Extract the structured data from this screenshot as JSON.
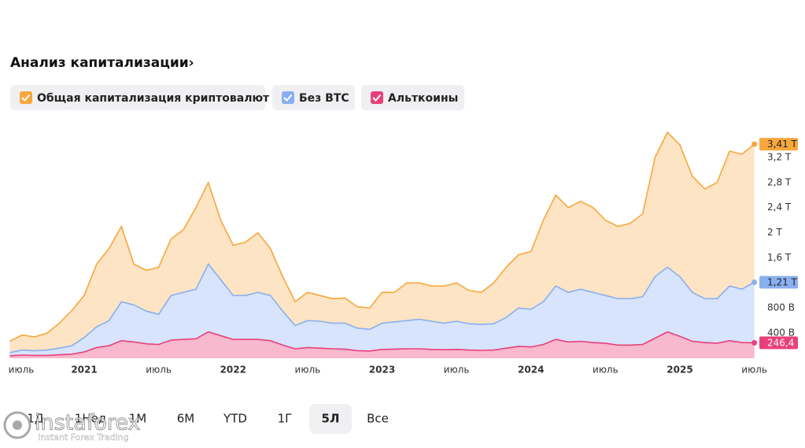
{
  "chart_data": {
    "type": "area",
    "title": "Анализ капитализации",
    "title_chevron": "›",
    "x": [
      "2020-07",
      "2020-08",
      "2020-09",
      "2020-10",
      "2020-11",
      "2020-12",
      "2021-01",
      "2021-02",
      "2021-03",
      "2021-04",
      "2021-05",
      "2021-06",
      "2021-07",
      "2021-08",
      "2021-09",
      "2021-10",
      "2021-11",
      "2021-12",
      "2022-01",
      "2022-02",
      "2022-03",
      "2022-04",
      "2022-05",
      "2022-06",
      "2022-07",
      "2022-08",
      "2022-09",
      "2022-10",
      "2022-11",
      "2022-12",
      "2023-01",
      "2023-02",
      "2023-03",
      "2023-04",
      "2023-05",
      "2023-06",
      "2023-07",
      "2023-08",
      "2023-09",
      "2023-10",
      "2023-11",
      "2023-12",
      "2024-01",
      "2024-02",
      "2024-03",
      "2024-04",
      "2024-05",
      "2024-06",
      "2024-07",
      "2024-08",
      "2024-09",
      "2024-10",
      "2024-11",
      "2024-12",
      "2025-01",
      "2025-02",
      "2025-03",
      "2025-04",
      "2025-05",
      "2025-06",
      "2025-07"
    ],
    "series": [
      {
        "name": "Общая капитализация криптовалют",
        "color": "#f7a73c",
        "fill": "#fde4c4",
        "last_label": "3,41 T",
        "values": [
          270,
          370,
          340,
          400,
          560,
          760,
          1000,
          1500,
          1750,
          2100,
          1500,
          1400,
          1450,
          1900,
          2050,
          2400,
          2800,
          2200,
          1800,
          1850,
          2000,
          1750,
          1300,
          900,
          1050,
          1000,
          950,
          960,
          820,
          800,
          1050,
          1050,
          1200,
          1200,
          1150,
          1150,
          1200,
          1080,
          1050,
          1200,
          1450,
          1650,
          1700,
          2200,
          2600,
          2400,
          2500,
          2400,
          2200,
          2100,
          2150,
          2300,
          3200,
          3600,
          3400,
          2900,
          2700,
          2800,
          3300,
          3250,
          3410
        ]
      },
      {
        "name": "Без BTC",
        "color": "#8aaff0",
        "fill": "#d7e4fb",
        "last_label": "1,21 T",
        "values": [
          90,
          130,
          120,
          130,
          160,
          200,
          330,
          500,
          600,
          900,
          850,
          750,
          700,
          1000,
          1050,
          1100,
          1500,
          1250,
          1000,
          1000,
          1050,
          1000,
          750,
          520,
          600,
          590,
          560,
          560,
          480,
          460,
          560,
          580,
          600,
          620,
          590,
          560,
          590,
          550,
          540,
          550,
          650,
          800,
          780,
          900,
          1150,
          1050,
          1100,
          1050,
          1000,
          950,
          950,
          980,
          1300,
          1450,
          1300,
          1050,
          950,
          950,
          1150,
          1100,
          1210
        ]
      },
      {
        "name": "Альткоины",
        "color": "#e8407a",
        "fill": "#f8b8cd",
        "last_label": "246,4 B",
        "values": [
          40,
          50,
          45,
          45,
          55,
          65,
          100,
          170,
          200,
          280,
          260,
          230,
          220,
          290,
          300,
          310,
          420,
          360,
          300,
          300,
          300,
          280,
          210,
          150,
          170,
          160,
          150,
          145,
          120,
          115,
          140,
          145,
          150,
          150,
          140,
          135,
          140,
          130,
          125,
          130,
          160,
          190,
          180,
          220,
          300,
          260,
          270,
          250,
          240,
          210,
          210,
          220,
          320,
          420,
          350,
          270,
          250,
          240,
          280,
          250,
          246.4
        ]
      }
    ],
    "xlim": [
      "2020-07",
      "2025-07"
    ],
    "xticks": [
      {
        "value": "2020-07",
        "label": "июль"
      },
      {
        "value": "2021-01",
        "label": "2021"
      },
      {
        "value": "2021-07",
        "label": "июль"
      },
      {
        "value": "2022-01",
        "label": "2022"
      },
      {
        "value": "2022-07",
        "label": "июль"
      },
      {
        "value": "2023-01",
        "label": "2023"
      },
      {
        "value": "2023-07",
        "label": "июль"
      },
      {
        "value": "2024-01",
        "label": "2024"
      },
      {
        "value": "2024-07",
        "label": "июль"
      },
      {
        "value": "2025-01",
        "label": "2025"
      },
      {
        "value": "2025-07",
        "label": "июль"
      }
    ],
    "ylim": [
      0,
      3600
    ],
    "yticks": [
      {
        "value": 400,
        "label": "400 B"
      },
      {
        "value": 800,
        "label": "800 B"
      },
      {
        "value": 1600,
        "label": "1,6 T"
      },
      {
        "value": 2000,
        "label": "2 T"
      },
      {
        "value": 2400,
        "label": "2,4 T"
      },
      {
        "value": 2800,
        "label": "2,8 T"
      },
      {
        "value": 3200,
        "label": "3,2 T"
      }
    ],
    "periods": [
      "1Д",
      "1Нед",
      "1М",
      "6М",
      "YTD",
      "1Г",
      "5Л",
      "Все"
    ],
    "selected_period": 6
  },
  "watermark": {
    "brand": "instaforex",
    "tagline": "Instant Forex Trading"
  }
}
